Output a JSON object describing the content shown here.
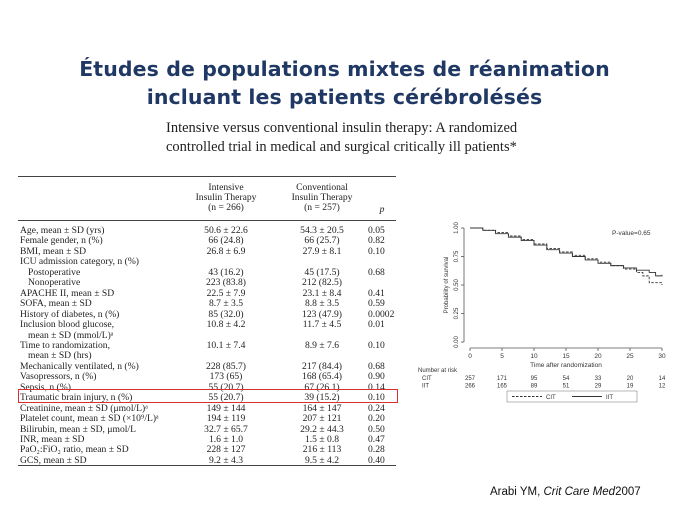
{
  "slide": {
    "title_line1": "Études de populations mixtes de réanimation",
    "title_line2": "incluant les patients cérébrolésés",
    "article_line1": "Intensive versus conventional insulin therapy: A randomized",
    "article_line2": "controlled trial in medical and surgical critically ill patients*",
    "citation_author": "Arabi YM, ",
    "citation_journal": "Crit Care Med",
    "citation_year": " 2007"
  },
  "table": {
    "headers": {
      "col1_line1": "Intensive",
      "col1_line2": "Insulin Therapy",
      "col1_line3": "(n = 266)",
      "col2_line1": "Conventional",
      "col2_line2": "Insulin Therapy",
      "col2_line3": "(n = 257)",
      "col3": "p"
    },
    "rows": [
      {
        "label": "Age, mean ± SD (yrs)",
        "iit": "50.6 ± 22.6",
        "cit": "54.3 ± 20.5",
        "p": "0.05"
      },
      {
        "label": "Female gender, n (%)",
        "iit": "66 (24.8)",
        "cit": "66 (25.7)",
        "p": "0.82"
      },
      {
        "label": "BMI, mean ± SD",
        "iit": "26.8 ± 6.9",
        "cit": "27.9 ± 8.1",
        "p": "0.10"
      },
      {
        "label": "ICU admission category, n (%)",
        "iit": "",
        "cit": "",
        "p": ""
      },
      {
        "label": "  Postoperative",
        "iit": "43 (16.2)",
        "cit": "45 (17.5)",
        "p": "0.68"
      },
      {
        "label": "  Nonoperative",
        "iit": "223 (83.8)",
        "cit": "212 (82.5)",
        "p": ""
      },
      {
        "label": "APACHE II, mean ± SD",
        "iit": "22.5 ± 7.9",
        "cit": "23.1 ± 8.4",
        "p": "0.41"
      },
      {
        "label": "SOFA, mean ± SD",
        "iit": "8.7 ± 3.5",
        "cit": "8.8 ± 3.5",
        "p": "0.59"
      },
      {
        "label": "History of diabetes, n (%)",
        "iit": "85 (32.0)",
        "cit": "123 (47.9)",
        "p": "0.0002"
      },
      {
        "label": "Inclusion blood glucose,",
        "iit": "10.8 ± 4.2",
        "cit": "11.7 ± 4.5",
        "p": "0.01"
      },
      {
        "label": "  mean ± SD (mmol/L)ᵃ",
        "iit": "",
        "cit": "",
        "p": ""
      },
      {
        "label": "Time to randomization,",
        "iit": "10.1 ± 7.4",
        "cit": "8.9 ± 7.6",
        "p": "0.10"
      },
      {
        "label": "  mean ± SD (hrs)",
        "iit": "",
        "cit": "",
        "p": ""
      },
      {
        "label": "Mechanically ventilated, n (%)",
        "iit": "228 (85.7)",
        "cit": "217 (84.4)",
        "p": "0.68"
      },
      {
        "label": "Vasopressors, n (%)",
        "iit": "173 (65)",
        "cit": "168 (65.4)",
        "p": "0.90"
      },
      {
        "label": "Sepsis, n (%)",
        "iit": "55 (20.7)",
        "cit": "67 (26.1)",
        "p": "0.14"
      },
      {
        "label": "Traumatic brain injury, n (%)",
        "iit": "55 (20.7)",
        "cit": "39 (15.2)",
        "p": "0.10"
      },
      {
        "label": "Creatinine, mean ± SD (μmol/L)ᵃ",
        "iit": "149 ± 144",
        "cit": "164 ± 147",
        "p": "0.24"
      },
      {
        "label": "Platelet count, mean ± SD (×10⁹/L)ᵃ",
        "iit": "194 ± 119",
        "cit": "207 ± 121",
        "p": "0.20"
      },
      {
        "label": "Bilirubin, mean ± SD, μmol/L",
        "iit": "32.7 ± 65.7",
        "cit": "29.2 ± 44.3",
        "p": "0.50"
      },
      {
        "label": "INR, mean ± SD",
        "iit": "1.6 ± 1.0",
        "cit": "1.5 ± 0.8",
        "p": "0.47"
      },
      {
        "label": "PaO₂:FiO₂ ratio, mean ± SD",
        "iit": "228 ± 127",
        "cit": "216 ± 113",
        "p": "0.28"
      },
      {
        "label": "GCS, mean ± SD",
        "iit": "9.2 ± 4.3",
        "cit": "9.5 ± 4.2",
        "p": "0.40"
      }
    ]
  },
  "km_plot": {
    "ylabel": "Probability of survival",
    "xlabel": "Time after randomization",
    "pvalue": "P-value=0.65",
    "y_ticks": [
      "0.00",
      "0.25",
      "0.50",
      "0.75",
      "1.00"
    ],
    "x_ticks": [
      "0",
      "5",
      "10",
      "15",
      "20",
      "25",
      "30"
    ],
    "risk_title": "Number at risk",
    "risk_rows": [
      {
        "group": "CIT",
        "counts": [
          "257",
          "171",
          "95",
          "54",
          "33",
          "20",
          "14"
        ]
      },
      {
        "group": "IIT",
        "counts": [
          "266",
          "165",
          "89",
          "51",
          "29",
          "19",
          "12"
        ]
      }
    ],
    "legend": [
      "CIT",
      "IIT"
    ],
    "curves": {
      "CIT": [
        [
          0,
          1.0
        ],
        [
          2,
          0.98
        ],
        [
          4,
          0.96
        ],
        [
          6,
          0.93
        ],
        [
          8,
          0.9
        ],
        [
          10,
          0.86
        ],
        [
          12,
          0.82
        ],
        [
          14,
          0.79
        ],
        [
          16,
          0.76
        ],
        [
          18,
          0.73
        ],
        [
          20,
          0.7
        ],
        [
          22,
          0.67
        ],
        [
          24,
          0.64
        ],
        [
          26,
          0.61
        ],
        [
          27,
          0.58
        ],
        [
          28,
          0.52
        ],
        [
          30,
          0.5
        ]
      ],
      "IIT": [
        [
          0,
          1.0
        ],
        [
          2,
          0.98
        ],
        [
          4,
          0.95
        ],
        [
          6,
          0.92
        ],
        [
          8,
          0.89
        ],
        [
          10,
          0.85
        ],
        [
          12,
          0.81
        ],
        [
          14,
          0.78
        ],
        [
          16,
          0.75
        ],
        [
          18,
          0.72
        ],
        [
          20,
          0.69
        ],
        [
          22,
          0.67
        ],
        [
          24,
          0.65
        ],
        [
          26,
          0.63
        ],
        [
          28,
          0.61
        ],
        [
          29,
          0.58
        ],
        [
          30,
          0.59
        ]
      ]
    },
    "colors": {
      "axis": "#555555",
      "line": "#333333"
    }
  }
}
